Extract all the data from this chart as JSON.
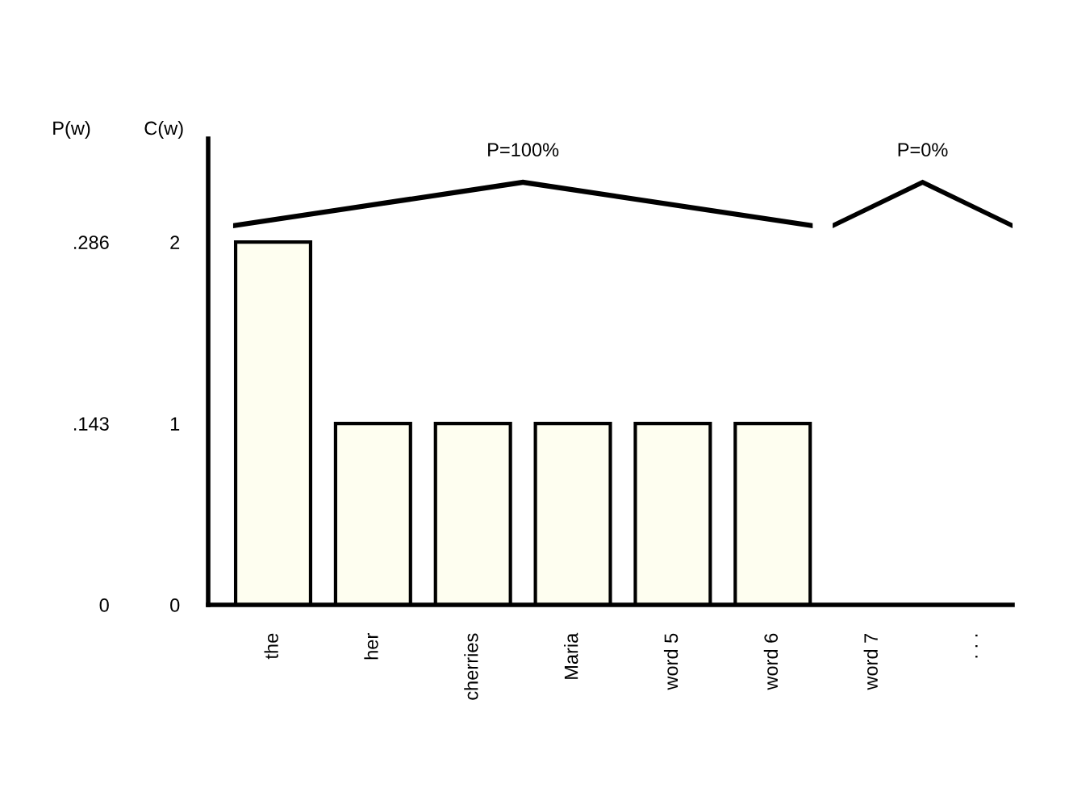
{
  "chart_data": {
    "type": "bar",
    "categories": [
      "the",
      "her",
      "cherries",
      "Maria",
      "word 5",
      "word 6",
      "word 7",
      ". . ."
    ],
    "values": [
      2,
      1,
      1,
      1,
      1,
      1,
      0,
      0
    ],
    "color": "#fefef0",
    "ylabel": "C(w)",
    "y2label": "P(w)",
    "ylim": [
      0,
      2.57
    ],
    "yticks": [
      0,
      1,
      2
    ],
    "y2lim": [
      0,
      0.3675
    ],
    "y2ticks": [
      {
        "value": 0,
        "label": "0"
      },
      {
        "value": 0.143,
        "label": ".143"
      },
      {
        "value": 0.286,
        "label": ".286"
      }
    ],
    "annotations": [
      "P=100%",
      "P=0%"
    ],
    "grid": false,
    "legend": false
  }
}
